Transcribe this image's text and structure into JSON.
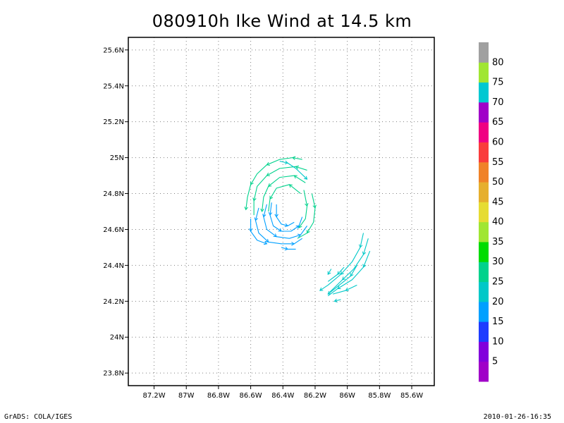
{
  "chart_data": {
    "type": "vector_field",
    "title": "080910h Ike Wind at 14.5 km",
    "x_ticks": [
      "87.2W",
      "87W",
      "86.8W",
      "86.6W",
      "86.4W",
      "86.2W",
      "86W",
      "85.8W",
      "85.6W"
    ],
    "y_ticks": [
      "25.6N",
      "25.4N",
      "25.2N",
      "25N",
      "24.8N",
      "24.6N",
      "24.4N",
      "24.2N",
      "24N",
      "23.8N"
    ],
    "x_range_lon": [
      -87.36,
      -85.46
    ],
    "y_range_lat": [
      23.73,
      25.67
    ],
    "grid": "dotted",
    "colorbar": {
      "labels": [
        "5",
        "10",
        "15",
        "20",
        "25",
        "30",
        "35",
        "40",
        "45",
        "50",
        "55",
        "60",
        "65",
        "70",
        "75",
        "80"
      ],
      "colors": [
        "#a000c8",
        "#8200dc",
        "#1e3cff",
        "#00a0ff",
        "#00c8c8",
        "#00d28c",
        "#00dc00",
        "#a0e632",
        "#e6dc32",
        "#e6af2d",
        "#f08228",
        "#fa3c3c",
        "#f00082",
        "#a000c8",
        "#00c8d2",
        "#a0e632",
        "#a0a0a0"
      ]
    },
    "streamlines": [
      {
        "speed_class": "25",
        "lonlat": [
          [
            -86.28,
            24.99
          ],
          [
            -86.34,
            25.0
          ],
          [
            -86.42,
            24.99
          ],
          [
            -86.5,
            24.96
          ],
          [
            -86.56,
            24.91
          ],
          [
            -86.6,
            24.85
          ],
          [
            -86.62,
            24.78
          ],
          [
            -86.63,
            24.71
          ]
        ]
      },
      {
        "speed_class": "25",
        "lonlat": [
          [
            -86.25,
            24.93
          ],
          [
            -86.32,
            24.95
          ],
          [
            -86.42,
            24.94
          ],
          [
            -86.5,
            24.9
          ],
          [
            -86.56,
            24.84
          ],
          [
            -86.58,
            24.76
          ],
          [
            -86.58,
            24.68
          ]
        ]
      },
      {
        "speed_class": "25",
        "lonlat": [
          [
            -86.26,
            24.86
          ],
          [
            -86.33,
            24.9
          ],
          [
            -86.42,
            24.89
          ],
          [
            -86.49,
            24.84
          ],
          [
            -86.52,
            24.78
          ],
          [
            -86.53,
            24.7
          ]
        ]
      },
      {
        "speed_class": "25",
        "lonlat": [
          [
            -86.29,
            24.8
          ],
          [
            -86.36,
            24.85
          ],
          [
            -86.44,
            24.83
          ],
          [
            -86.48,
            24.77
          ],
          [
            -86.49,
            24.7
          ]
        ]
      },
      {
        "speed_class": "25",
        "lonlat": [
          [
            -86.22,
            24.8
          ],
          [
            -86.2,
            24.72
          ],
          [
            -86.21,
            24.64
          ],
          [
            -86.25,
            24.58
          ],
          [
            -86.31,
            24.55
          ]
        ]
      },
      {
        "speed_class": "25",
        "lonlat": [
          [
            -86.27,
            24.82
          ],
          [
            -86.25,
            24.73
          ],
          [
            -86.26,
            24.66
          ],
          [
            -86.3,
            24.61
          ]
        ]
      },
      {
        "speed_class": "20",
        "lonlat": [
          [
            -86.42,
            24.98
          ],
          [
            -86.37,
            24.97
          ],
          [
            -86.32,
            24.94
          ],
          [
            -86.25,
            24.88
          ]
        ]
      },
      {
        "speed_class": "15",
        "lonlat": [
          [
            -86.5,
            24.74
          ],
          [
            -86.52,
            24.67
          ],
          [
            -86.5,
            24.6
          ],
          [
            -86.44,
            24.56
          ],
          [
            -86.36,
            24.55
          ],
          [
            -86.29,
            24.57
          ],
          [
            -86.25,
            24.62
          ]
        ]
      },
      {
        "speed_class": "15",
        "lonlat": [
          [
            -86.47,
            24.75
          ],
          [
            -86.48,
            24.68
          ],
          [
            -86.46,
            24.62
          ],
          [
            -86.41,
            24.59
          ],
          [
            -86.35,
            24.59
          ],
          [
            -86.3,
            24.62
          ],
          [
            -86.28,
            24.67
          ]
        ]
      },
      {
        "speed_class": "15",
        "lonlat": [
          [
            -86.55,
            24.72
          ],
          [
            -86.57,
            24.65
          ],
          [
            -86.55,
            24.58
          ],
          [
            -86.49,
            24.53
          ],
          [
            -86.41,
            24.52
          ],
          [
            -86.33,
            24.52
          ],
          [
            -86.28,
            24.55
          ]
        ]
      },
      {
        "speed_class": "15",
        "lonlat": [
          [
            -86.44,
            24.74
          ],
          [
            -86.44,
            24.67
          ],
          [
            -86.41,
            24.63
          ],
          [
            -86.37,
            24.62
          ],
          [
            -86.33,
            24.64
          ]
        ]
      },
      {
        "speed_class": "15",
        "lonlat": [
          [
            -86.6,
            24.66
          ],
          [
            -86.6,
            24.59
          ],
          [
            -86.56,
            24.54
          ],
          [
            -86.5,
            24.52
          ]
        ]
      },
      {
        "speed_class": "15",
        "lonlat": [
          [
            -86.41,
            24.5
          ],
          [
            -86.37,
            24.49
          ],
          [
            -86.32,
            24.49
          ]
        ]
      },
      {
        "speed_class": "20",
        "lonlat": [
          [
            -85.9,
            24.58
          ],
          [
            -85.92,
            24.5
          ],
          [
            -85.97,
            24.42
          ],
          [
            -86.04,
            24.35
          ],
          [
            -86.12,
            24.29
          ],
          [
            -86.17,
            24.26
          ]
        ]
      },
      {
        "speed_class": "20",
        "lonlat": [
          [
            -85.87,
            24.55
          ],
          [
            -85.9,
            24.46
          ],
          [
            -85.96,
            24.38
          ],
          [
            -86.03,
            24.32
          ],
          [
            -86.11,
            24.25
          ]
        ]
      },
      {
        "speed_class": "20",
        "lonlat": [
          [
            -85.86,
            24.48
          ],
          [
            -85.9,
            24.39
          ],
          [
            -85.97,
            24.32
          ],
          [
            -86.06,
            24.27
          ],
          [
            -86.12,
            24.23
          ]
        ]
      },
      {
        "speed_class": "20",
        "lonlat": [
          [
            -85.94,
            24.4
          ],
          [
            -85.98,
            24.34
          ],
          [
            -86.05,
            24.29
          ],
          [
            -86.12,
            24.24
          ]
        ]
      },
      {
        "speed_class": "20",
        "lonlat": [
          [
            -85.94,
            24.29
          ],
          [
            -86.01,
            24.26
          ],
          [
            -86.09,
            24.24
          ]
        ]
      },
      {
        "speed_class": "20",
        "lonlat": [
          [
            -86.02,
            24.39
          ],
          [
            -86.06,
            24.35
          ],
          [
            -86.12,
            24.31
          ]
        ]
      },
      {
        "speed_class": "20",
        "lonlat": [
          [
            -86.04,
            24.21
          ],
          [
            -86.08,
            24.2
          ]
        ]
      },
      {
        "speed_class": "20",
        "lonlat": [
          [
            -86.1,
            24.38
          ],
          [
            -86.12,
            24.35
          ]
        ]
      }
    ]
  },
  "footer": {
    "left": "GrADS: COLA/IGES",
    "right": "2010-01-26-16:35"
  }
}
